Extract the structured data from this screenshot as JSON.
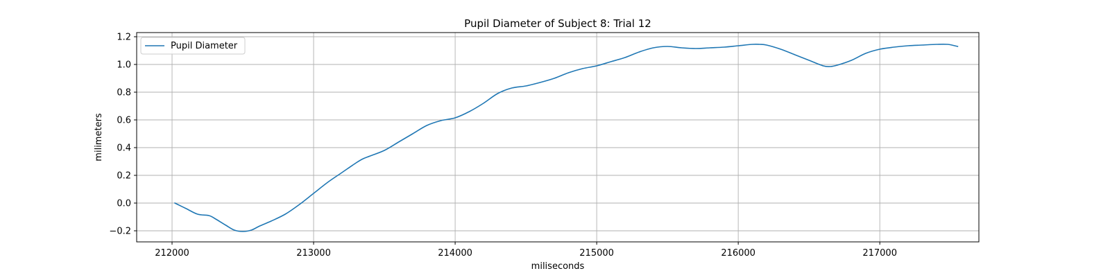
{
  "chart_data": {
    "type": "line",
    "title": "Pupil Diameter of Subject 8: Trial 12",
    "xlabel": "miliseconds",
    "ylabel": "milimeters",
    "xlim": [
      211750,
      217700
    ],
    "ylim": [
      -0.28,
      1.23
    ],
    "grid": true,
    "legend_position": "upper-left",
    "x_ticks": [
      212000,
      213000,
      214000,
      215000,
      216000,
      217000
    ],
    "x_tick_labels": [
      "212000",
      "213000",
      "214000",
      "215000",
      "216000",
      "217000"
    ],
    "y_ticks": [
      -0.2,
      0.0,
      0.2,
      0.4,
      0.6,
      0.8,
      1.0,
      1.2
    ],
    "y_tick_labels": [
      "−0.2",
      "0.0",
      "0.2",
      "0.4",
      "0.6",
      "0.8",
      "1.0",
      "1.2"
    ],
    "series": [
      {
        "name": "Pupil Diameter",
        "color": "#1f77b4",
        "x": [
          212020,
          212100,
          212180,
          212260,
          212300,
          212380,
          212440,
          212500,
          212560,
          212620,
          212700,
          212800,
          212900,
          213000,
          213100,
          213200,
          213300,
          213350,
          213400,
          213500,
          213600,
          213700,
          213800,
          213900,
          214000,
          214100,
          214200,
          214300,
          214400,
          214500,
          214600,
          214700,
          214800,
          214900,
          215000,
          215100,
          215200,
          215300,
          215400,
          215500,
          215600,
          215700,
          215800,
          215900,
          216000,
          216100,
          216150,
          216200,
          216300,
          216400,
          216500,
          216600,
          216650,
          216700,
          216800,
          216900,
          217000,
          217100,
          217200,
          217300,
          217400,
          217480,
          217550
        ],
        "y": [
          0.0,
          -0.04,
          -0.08,
          -0.09,
          -0.11,
          -0.16,
          -0.195,
          -0.205,
          -0.195,
          -0.165,
          -0.13,
          -0.08,
          -0.01,
          0.07,
          0.15,
          0.22,
          0.29,
          0.32,
          0.34,
          0.38,
          0.44,
          0.5,
          0.56,
          0.595,
          0.615,
          0.66,
          0.72,
          0.79,
          0.83,
          0.845,
          0.87,
          0.9,
          0.94,
          0.97,
          0.99,
          1.02,
          1.05,
          1.09,
          1.12,
          1.13,
          1.12,
          1.115,
          1.12,
          1.125,
          1.135,
          1.145,
          1.145,
          1.14,
          1.11,
          1.07,
          1.03,
          0.99,
          0.985,
          0.995,
          1.03,
          1.08,
          1.11,
          1.125,
          1.135,
          1.14,
          1.145,
          1.145,
          1.13
        ]
      }
    ]
  }
}
